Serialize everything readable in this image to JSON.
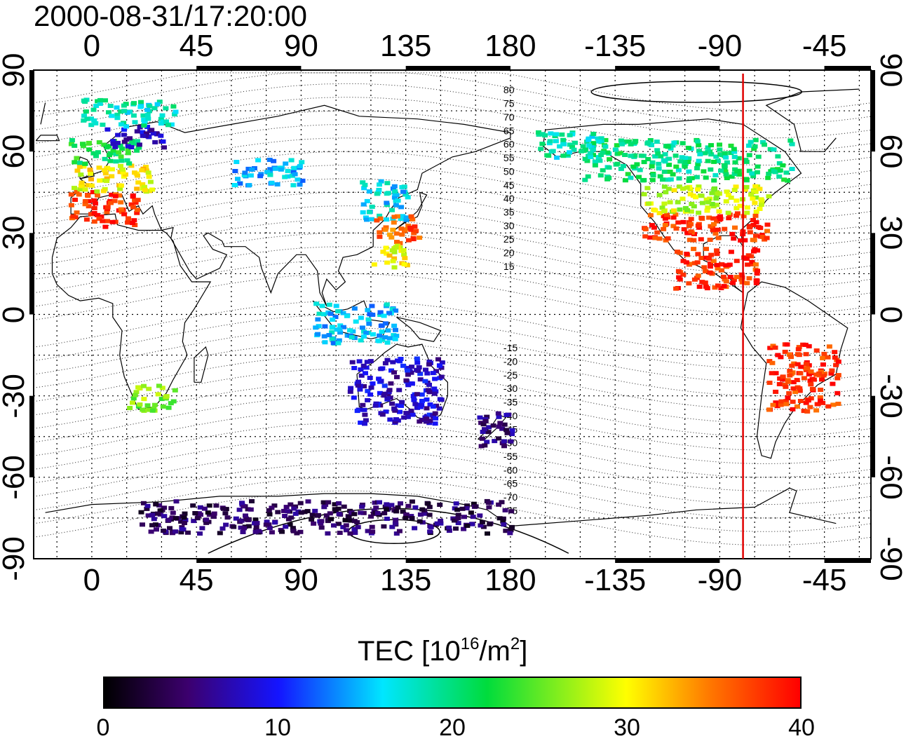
{
  "title": "2000-08-31/17:20:00",
  "map": {
    "lon_ticks": [
      "0",
      "45",
      "90",
      "135",
      "180",
      "-135",
      "-90",
      "-45"
    ],
    "lat_ticks": [
      "90",
      "60",
      "30",
      "0",
      "-30",
      "-60",
      "-90"
    ],
    "mlat_labels": [
      "80",
      "75",
      "70",
      "65",
      "60",
      "55",
      "50",
      "45",
      "40",
      "35",
      "30",
      "25",
      "20",
      "15",
      "-15",
      "-20",
      "-25",
      "-30",
      "-35",
      "-40",
      "-45",
      "-50",
      "-55",
      "-60",
      "-65",
      "-70",
      "-75"
    ],
    "terminator_lon": -80,
    "terminator_color": "#e00000"
  },
  "colorbar": {
    "title_main": "TEC  [10",
    "title_exp": "16",
    "title_mid": "/m",
    "title_exp2": "2",
    "title_end": "]",
    "ticks": [
      "0",
      "10",
      "20",
      "30",
      "40"
    ],
    "min": 0,
    "max": 40
  },
  "tec_regions": [
    {
      "name": "europe-south",
      "lon": [
        -10,
        20
      ],
      "lat": [
        33,
        46
      ],
      "value": 38
    },
    {
      "name": "europe-mid",
      "lon": [
        -10,
        25
      ],
      "lat": [
        46,
        56
      ],
      "value": 30
    },
    {
      "name": "europe-north",
      "lon": [
        -10,
        20
      ],
      "lat": [
        56,
        65
      ],
      "value": 22
    },
    {
      "name": "scandinavia",
      "lon": [
        5,
        30
      ],
      "lat": [
        62,
        70
      ],
      "value": 8
    },
    {
      "name": "arctic-europe",
      "lon": [
        -5,
        35
      ],
      "lat": [
        70,
        80
      ],
      "value": 18
    },
    {
      "name": "russia",
      "lon": [
        60,
        90
      ],
      "lat": [
        48,
        58
      ],
      "value": 15
    },
    {
      "name": "china-north",
      "lon": [
        115,
        135
      ],
      "lat": [
        35,
        50
      ],
      "value": 16
    },
    {
      "name": "japan",
      "lon": [
        120,
        140
      ],
      "lat": [
        27,
        37
      ],
      "value": 36
    },
    {
      "name": "south-china",
      "lon": [
        120,
        135
      ],
      "lat": [
        18,
        27
      ],
      "value": 30
    },
    {
      "name": "indonesia",
      "lon": [
        95,
        130
      ],
      "lat": [
        -10,
        5
      ],
      "value": 15
    },
    {
      "name": "australia",
      "lon": [
        110,
        150
      ],
      "lat": [
        -40,
        -15
      ],
      "value": 8
    },
    {
      "name": "new-zealand",
      "lon": [
        165,
        180
      ],
      "lat": [
        -48,
        -35
      ],
      "value": 5
    },
    {
      "name": "antarctic-coast",
      "lon": [
        20,
        180
      ],
      "lat": [
        -80,
        -68
      ],
      "value": 4
    },
    {
      "name": "north-america-south",
      "lon": [
        -125,
        -70
      ],
      "lat": [
        28,
        38
      ],
      "value": 38
    },
    {
      "name": "north-america-mid",
      "lon": [
        -125,
        -70
      ],
      "lat": [
        38,
        48
      ],
      "value": 28
    },
    {
      "name": "canada",
      "lon": [
        -150,
        -60
      ],
      "lat": [
        50,
        65
      ],
      "value": 20
    },
    {
      "name": "central-america",
      "lon": [
        -110,
        -75
      ],
      "lat": [
        10,
        25
      ],
      "value": 38
    },
    {
      "name": "south-america",
      "lon": [
        -70,
        -40
      ],
      "lat": [
        -35,
        -10
      ],
      "value": 38
    },
    {
      "name": "south-africa",
      "lon": [
        15,
        35
      ],
      "lat": [
        -35,
        -25
      ],
      "value": 26
    },
    {
      "name": "alaska",
      "lon": [
        -170,
        -140
      ],
      "lat": [
        58,
        68
      ],
      "value": 18
    }
  ]
}
